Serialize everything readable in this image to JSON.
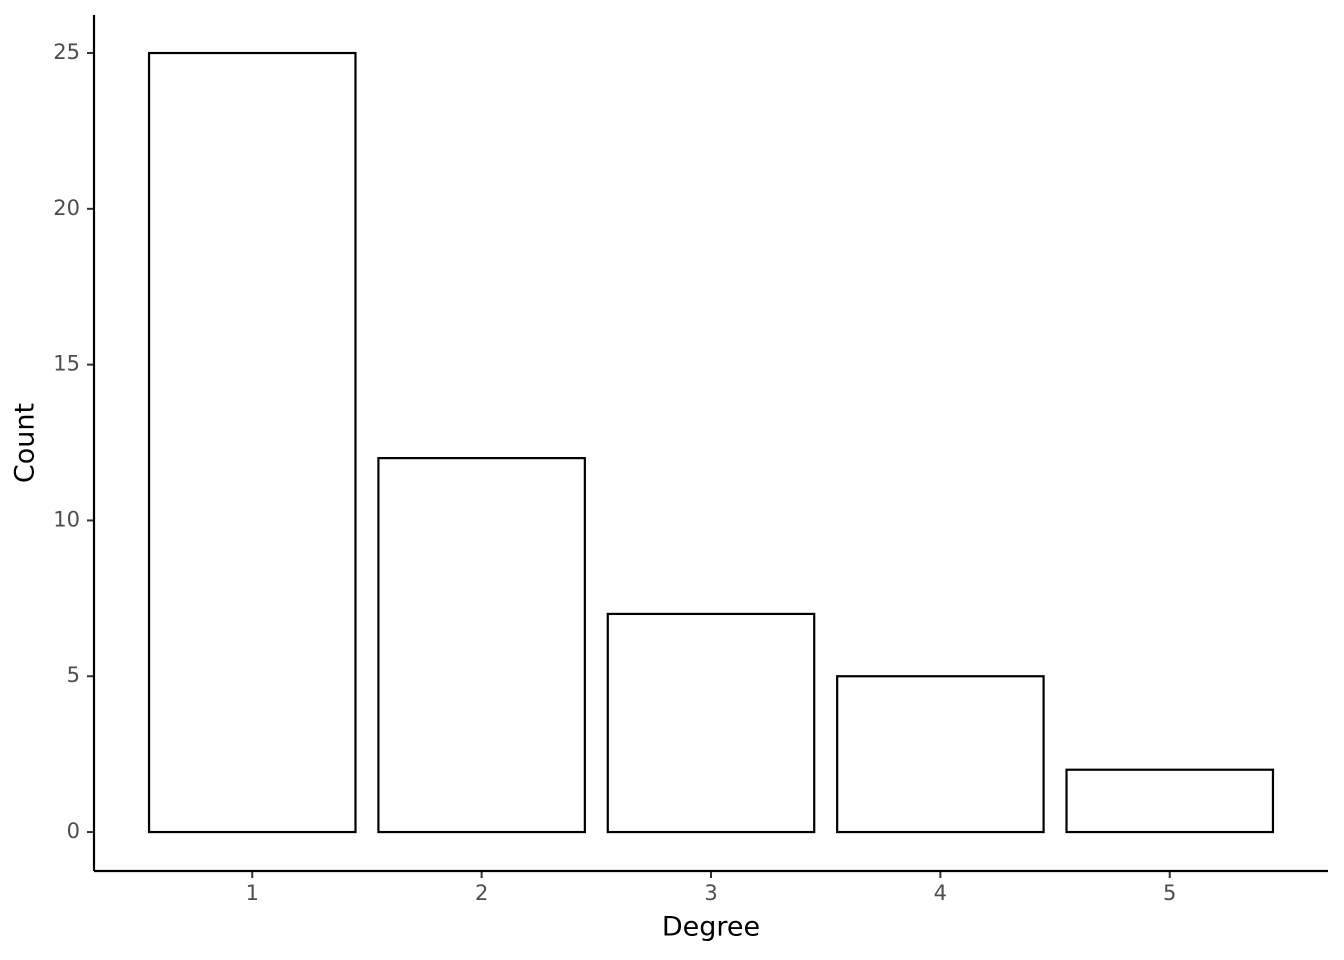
{
  "chart_data": {
    "type": "bar",
    "x_label": "Degree",
    "y_label": "Count",
    "categories": [
      "1",
      "2",
      "3",
      "4",
      "5"
    ],
    "values": [
      25,
      12,
      7,
      5,
      2
    ],
    "color": "#ffffff",
    "edge_color": "#000000",
    "ylim": [
      -1.25,
      26.22
    ],
    "yticks": [
      0,
      5,
      10,
      15,
      20,
      25
    ],
    "grid": false
  }
}
